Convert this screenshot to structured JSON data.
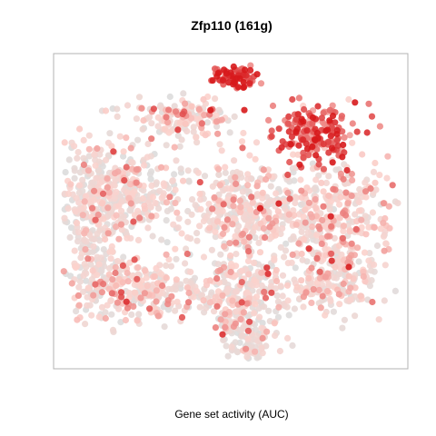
{
  "chart_data": {
    "type": "scatter",
    "title": "Zfp110 (161g)",
    "xlabel": "Gene set activity (AUC)",
    "ylabel": "",
    "grid": false,
    "legend": "none",
    "color_scale": {
      "low": "#dcdcdc",
      "mid": "#fcd2cc",
      "high": "#d7191c"
    }
  }
}
